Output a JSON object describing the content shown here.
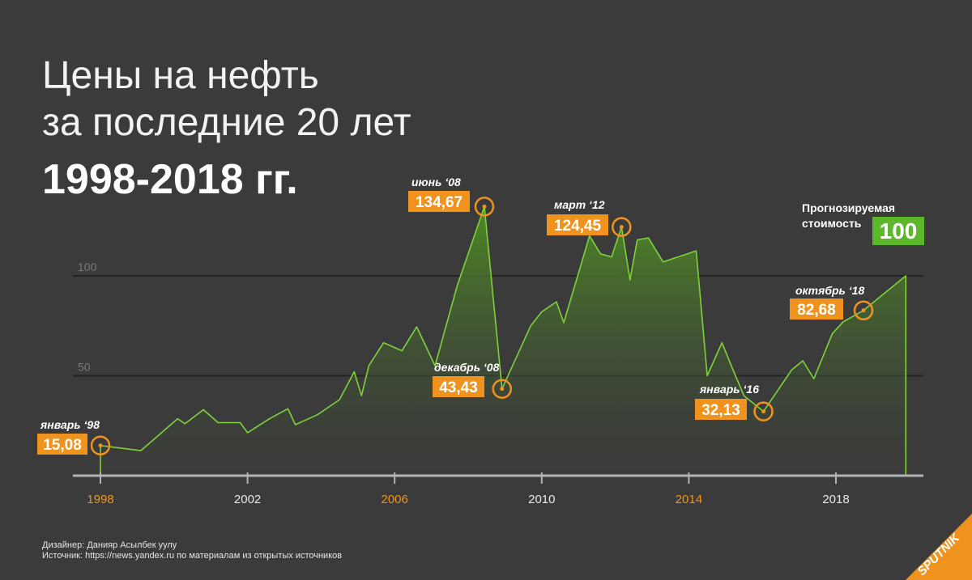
{
  "header": {
    "title_line1": "Цены на нефть",
    "title_line2": "за последние 20 лет",
    "subtitle": "1998-2018 гг."
  },
  "forecast": {
    "label_line1": "Прогнозируемая",
    "label_line2": "стоимость",
    "value": "100"
  },
  "credits": {
    "designer": "Дизайнер: Данияр Асылбек уулу",
    "source": "Источник: https://news.yandex.ru по материалам из открытых источников"
  },
  "logo": {
    "text": "SPUTNIK"
  },
  "colors": {
    "background": "#3b3b3b",
    "line": "#7ed23a",
    "area": "#4e8a24",
    "highlight": "#f0931e",
    "forecast": "#5cb82a",
    "axis": "#b3b3b3"
  },
  "chart_data": {
    "type": "area",
    "ylim": [
      0,
      140
    ],
    "yticks": [
      50,
      100
    ],
    "xlim": [
      1998,
      2020
    ],
    "xticks": [
      {
        "value": 1998,
        "label": "1998",
        "highlight": true
      },
      {
        "value": 2002,
        "label": "2002",
        "highlight": false
      },
      {
        "value": 2006,
        "label": "2006",
        "highlight": true
      },
      {
        "value": 2010,
        "label": "2010",
        "highlight": false
      },
      {
        "value": 2014,
        "label": "2014",
        "highlight": true
      },
      {
        "value": 2018,
        "label": "2018",
        "highlight": false
      }
    ],
    "series": [
      {
        "x": [
          1998.0,
          1999.1,
          2000.1,
          2000.3,
          2000.8,
          2001.2,
          2001.8,
          2002.0,
          2002.6,
          2003.1,
          2003.3,
          2003.9,
          2004.5,
          2004.9,
          2005.1,
          2005.3,
          2005.7,
          2006.2,
          2006.6,
          2007.1,
          2007.7,
          2008.44,
          2008.92,
          2009.7,
          2010.0,
          2010.4,
          2010.6,
          2011.3,
          2011.6,
          2011.9,
          2012.17,
          2012.4,
          2012.6,
          2012.9,
          2013.3,
          2013.8,
          2014.2,
          2014.5,
          2014.9,
          2015.2,
          2015.5,
          2016.03,
          2016.8,
          2017.1,
          2017.4,
          2017.9,
          2018.2,
          2018.75,
          2019.3,
          2019.9
        ],
        "values": [
          15.08,
          12.5,
          28.5,
          26.0,
          33.0,
          26.5,
          26.5,
          21.5,
          28.5,
          33.5,
          25.5,
          30.5,
          38.0,
          52.0,
          40.0,
          55.0,
          66.5,
          62.5,
          74.5,
          55.0,
          95.0,
          134.67,
          43.43,
          75.0,
          82.0,
          87.0,
          76.5,
          120.0,
          111.0,
          109.5,
          124.45,
          98.0,
          118.0,
          119.0,
          107.0,
          110.0,
          112.5,
          50.0,
          66.5,
          53.0,
          40.0,
          32.13,
          53.0,
          57.5,
          48.5,
          71.0,
          77.0,
          82.68,
          91.0,
          100.0
        ]
      }
    ],
    "annotations": [
      {
        "label": "январь ‘98",
        "value": "15,08",
        "x": 1998.0,
        "y": 15.08
      },
      {
        "label": "июнь ‘08",
        "value": "134,67",
        "x": 2008.44,
        "y": 134.67
      },
      {
        "label": "декабрь ‘08",
        "value": "43,43",
        "x": 2008.92,
        "y": 43.43
      },
      {
        "label": "март ‘12",
        "value": "124,45",
        "x": 2012.17,
        "y": 124.45
      },
      {
        "label": "январь ‘16",
        "value": "32,13",
        "x": 2016.03,
        "y": 32.13
      },
      {
        "label": "октябрь ‘18",
        "value": "82,68",
        "x": 2018.75,
        "y": 82.68
      }
    ]
  }
}
